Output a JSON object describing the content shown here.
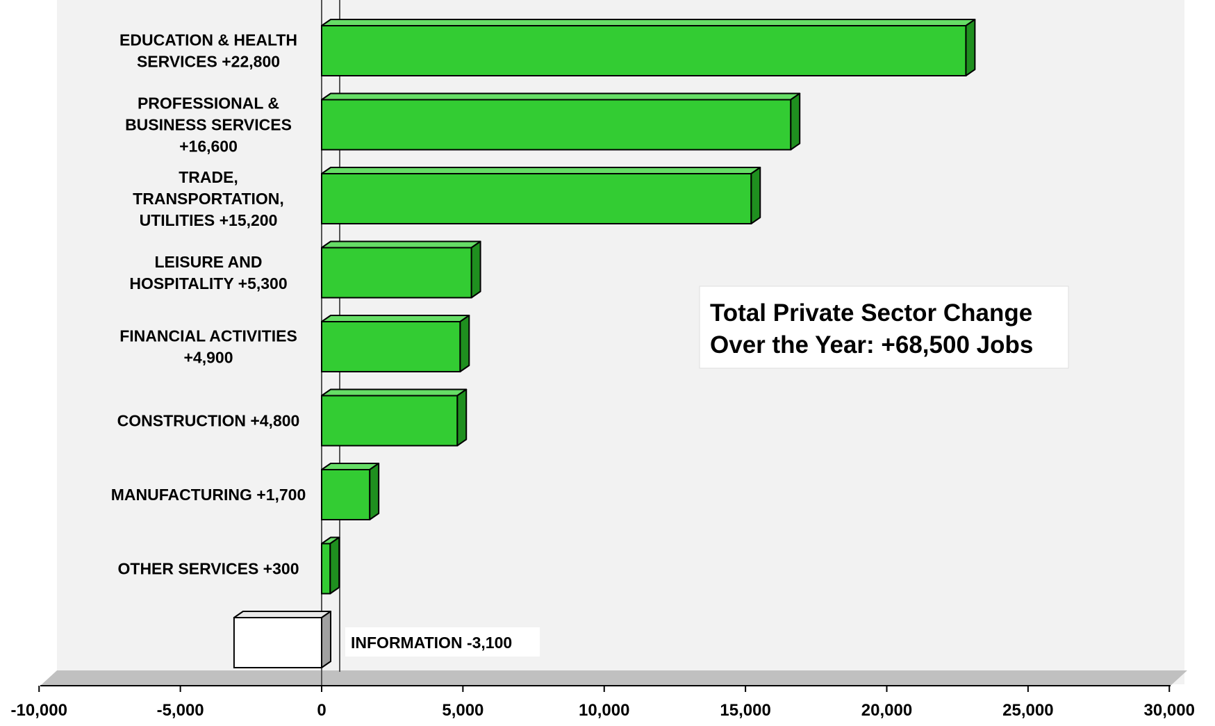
{
  "chart_data": {
    "type": "bar",
    "orientation": "horizontal",
    "style": "3d",
    "title": "",
    "xlabel": "",
    "ylabel": "",
    "xlim": [
      -10000,
      30000
    ],
    "x_ticks": [
      "-10,000",
      "-5,000",
      "0",
      "5,000",
      "10,000",
      "15,000",
      "20,000",
      "25,000",
      "30,000"
    ],
    "categories": [
      {
        "label_lines": [
          "EDUCATION & HEALTH",
          "SERVICES  +22,800"
        ],
        "value": 22800,
        "label_side": "left"
      },
      {
        "label_lines": [
          "PROFESSIONAL &",
          "BUSINESS SERVICES",
          "+16,600"
        ],
        "value": 16600,
        "label_side": "left"
      },
      {
        "label_lines": [
          "TRADE,",
          "TRANSPORTATION,",
          "UTILITIES +15,200"
        ],
        "value": 15200,
        "label_side": "left"
      },
      {
        "label_lines": [
          "LEISURE AND",
          "HOSPITALITY +5,300"
        ],
        "value": 5300,
        "label_side": "left"
      },
      {
        "label_lines": [
          "FINANCIAL ACTIVITIES",
          "+4,900"
        ],
        "value": 4900,
        "label_side": "left"
      },
      {
        "label_lines": [
          "CONSTRUCTION  +4,800"
        ],
        "value": 4800,
        "label_side": "left"
      },
      {
        "label_lines": [
          "MANUFACTURING +1,700"
        ],
        "value": 1700,
        "label_side": "left"
      },
      {
        "label_lines": [
          "OTHER SERVICES +300"
        ],
        "value": 300,
        "label_side": "left"
      },
      {
        "label_lines": [
          "INFORMATION -3,100"
        ],
        "value": -3100,
        "label_side": "right"
      }
    ],
    "annotation": {
      "lines": [
        "Total Private Sector Change",
        "Over the Year: +68,500 Jobs"
      ]
    },
    "colors": {
      "positive_front": "#33cc33",
      "positive_top": "#66dd66",
      "positive_side": "#1f8f1f",
      "negative_front": "#ffffff",
      "negative_top": "#e8e8e8",
      "negative_side": "#a0a0a0",
      "wall": "#f2f2f2",
      "floor": "#c0c0c0",
      "outline": "#000000"
    },
    "grid": false,
    "legend": "none"
  }
}
